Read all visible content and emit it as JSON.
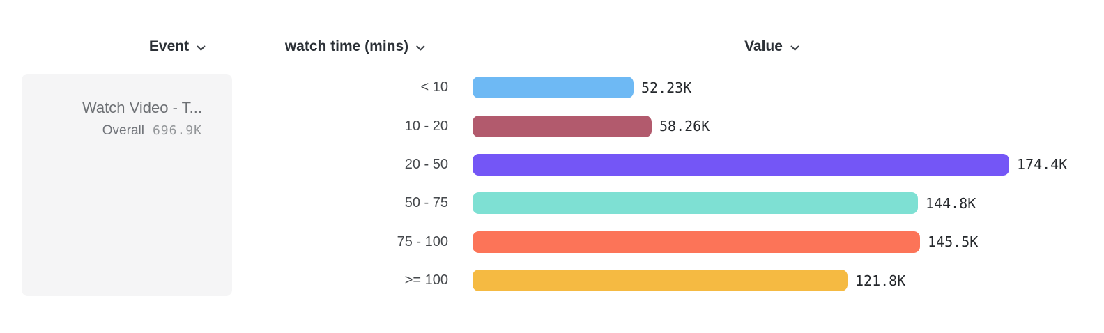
{
  "header": {
    "columns": [
      {
        "id": "event",
        "label": "Event",
        "icon": "chevron-down"
      },
      {
        "id": "watch_time",
        "label": "watch time (mins)",
        "icon": "chevron-down"
      },
      {
        "id": "value",
        "label": "Value",
        "icon": "chevron-down"
      }
    ]
  },
  "event_card": {
    "title": "Watch Video - T...",
    "metric_label": "Overall",
    "metric_value": "696.9K"
  },
  "chart_data": {
    "type": "bar",
    "orientation": "horizontal",
    "title": "",
    "xlabel": "Value",
    "ylabel": "watch time (mins)",
    "categories": [
      "< 10",
      "10 - 20",
      "20 - 50",
      "50 - 75",
      "75 - 100",
      ">= 100"
    ],
    "values": [
      52.23,
      58.26,
      174.4,
      144.8,
      145.5,
      121.8
    ],
    "value_unit": "K",
    "value_labels": [
      "52.23K",
      "58.26K",
      "174.4K",
      "144.8K",
      "145.5K",
      "121.8K"
    ],
    "bar_colors": [
      "#6eb9f4",
      "#b25a6d",
      "#7456f6",
      "#7ee0d3",
      "#fc7458",
      "#f5ba42"
    ],
    "xlim": [
      0,
      174.4
    ],
    "grid": false,
    "legend": false
  },
  "colors": {
    "header_text": "#2b3036",
    "category_text": "#46494d",
    "value_text": "#25282c",
    "card_background": "#f5f5f6",
    "card_text": "#6c6f73"
  }
}
